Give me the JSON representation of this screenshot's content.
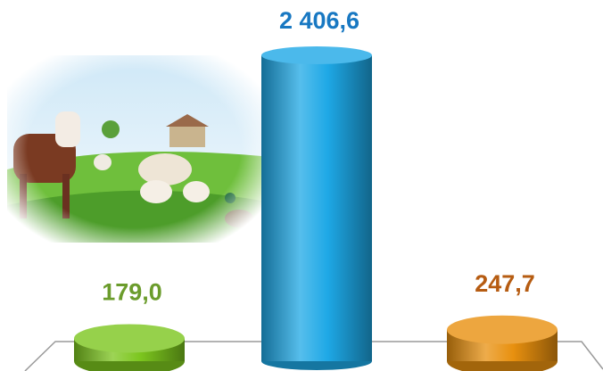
{
  "chart_data": {
    "type": "cylinder",
    "categories": [
      null,
      null,
      null
    ],
    "values": [
      179.0,
      2406.6,
      247.7
    ],
    "value_labels": [
      "179,0",
      "2 406,6",
      "247,7"
    ],
    "colors": [
      "#7cc61e",
      "#1ea8e6",
      "#e8900f"
    ],
    "label_colors": [
      "#6b9c2c",
      "#1878c2",
      "#b65c12"
    ]
  }
}
